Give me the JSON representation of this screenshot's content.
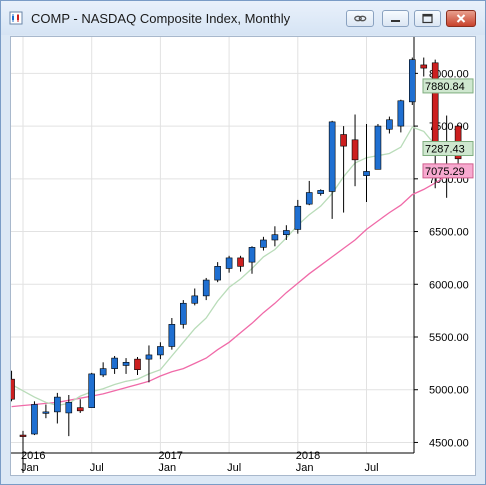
{
  "window": {
    "title": "COMP - NASDAQ Composite Index, Monthly",
    "buttons": [
      "link",
      "minimize",
      "maximize",
      "close"
    ]
  },
  "chart_data": {
    "type": "candlestick",
    "symbol": "COMP",
    "interval": "Monthly",
    "title": "COMP - NASDAQ Composite Index, Monthly",
    "ylim": [
      4400,
      8250
    ],
    "y_ticks": [
      "4500.00",
      "5000.00",
      "5500.00",
      "6000.00",
      "6500.00",
      "7000.00",
      "7500.00",
      "8000.00"
    ],
    "x_labels": [
      {
        "month": "2016-01",
        "label": "2016"
      },
      {
        "month": "2016-01",
        "label": "Jan"
      },
      {
        "month": "2016-07",
        "label": "Jul"
      },
      {
        "month": "2017-01",
        "label": "2017"
      },
      {
        "month": "2017-01",
        "label": "Jan"
      },
      {
        "month": "2017-07",
        "label": "Jul"
      },
      {
        "month": "2018-01",
        "label": "2018"
      },
      {
        "month": "2018-01",
        "label": "Jan"
      },
      {
        "month": "2018-07",
        "label": "Jul"
      }
    ],
    "price_labels": [
      {
        "label": "7880.84",
        "value": 7880.84,
        "color": "#cfe7cf",
        "border": "#7fae7f"
      },
      {
        "label": "7287.43",
        "value": 7287.43,
        "color": "#cfe7cf",
        "border": "#7fae7f"
      },
      {
        "label": "7075.29",
        "value": 7075.29,
        "color": "#f7a9cf",
        "border": "#d0608f"
      }
    ],
    "colors": {
      "up": "#1f6fd1",
      "down": "#cc1f1f",
      "wick": "#000000",
      "ma_fast": "#b9dcb9",
      "ma_slow": "#f06aa8",
      "grid": "#e2e2e2"
    },
    "candles": [
      {
        "date": "2015-12",
        "open": 5100,
        "high": 5180,
        "low": 4890,
        "close": 4910
      },
      {
        "date": "2016-01",
        "open": 4570,
        "high": 4610,
        "low": 4210,
        "close": 4560
      },
      {
        "date": "2016-02",
        "open": 4580,
        "high": 4890,
        "low": 4570,
        "close": 4860
      },
      {
        "date": "2016-03",
        "open": 4780,
        "high": 4860,
        "low": 4730,
        "close": 4790
      },
      {
        "date": "2016-04",
        "open": 4790,
        "high": 4970,
        "low": 4680,
        "close": 4930
      },
      {
        "date": "2016-05",
        "open": 4780,
        "high": 4950,
        "low": 4560,
        "close": 4880
      },
      {
        "date": "2016-06",
        "open": 4830,
        "high": 4910,
        "low": 4780,
        "close": 4800
      },
      {
        "date": "2016-07",
        "open": 4830,
        "high": 5160,
        "low": 4830,
        "close": 5150
      },
      {
        "date": "2016-08",
        "open": 5140,
        "high": 5260,
        "low": 5120,
        "close": 5200
      },
      {
        "date": "2016-09",
        "open": 5200,
        "high": 5320,
        "low": 5150,
        "close": 5300
      },
      {
        "date": "2016-10",
        "open": 5230,
        "high": 5300,
        "low": 5150,
        "close": 5260
      },
      {
        "date": "2016-11",
        "open": 5290,
        "high": 5310,
        "low": 5140,
        "close": 5190
      },
      {
        "date": "2016-12",
        "open": 5290,
        "high": 5420,
        "low": 5070,
        "close": 5330
      },
      {
        "date": "2017-01",
        "open": 5330,
        "high": 5450,
        "low": 5290,
        "close": 5410
      },
      {
        "date": "2017-02",
        "open": 5410,
        "high": 5680,
        "low": 5380,
        "close": 5620
      },
      {
        "date": "2017-03",
        "open": 5620,
        "high": 5850,
        "low": 5580,
        "close": 5820
      },
      {
        "date": "2017-04",
        "open": 5820,
        "high": 5960,
        "low": 5800,
        "close": 5890
      },
      {
        "date": "2017-05",
        "open": 5890,
        "high": 6060,
        "low": 5850,
        "close": 6040
      },
      {
        "date": "2017-06",
        "open": 6040,
        "high": 6210,
        "low": 6020,
        "close": 6170
      },
      {
        "date": "2017-07",
        "open": 6150,
        "high": 6270,
        "low": 6110,
        "close": 6250
      },
      {
        "date": "2017-08",
        "open": 6250,
        "high": 6270,
        "low": 6120,
        "close": 6170
      },
      {
        "date": "2017-09",
        "open": 6210,
        "high": 6360,
        "low": 6100,
        "close": 6350
      },
      {
        "date": "2017-10",
        "open": 6350,
        "high": 6450,
        "low": 6320,
        "close": 6420
      },
      {
        "date": "2017-11",
        "open": 6420,
        "high": 6550,
        "low": 6360,
        "close": 6470
      },
      {
        "date": "2017-12",
        "open": 6470,
        "high": 6560,
        "low": 6420,
        "close": 6510
      },
      {
        "date": "2018-01",
        "open": 6520,
        "high": 6800,
        "low": 6480,
        "close": 6740
      },
      {
        "date": "2018-02",
        "open": 6760,
        "high": 6980,
        "low": 6750,
        "close": 6870
      },
      {
        "date": "2018-03",
        "open": 6860,
        "high": 6900,
        "low": 6840,
        "close": 6890
      },
      {
        "date": "2018-04",
        "open": 6880,
        "high": 7550,
        "low": 6620,
        "close": 7540
      },
      {
        "date": "2018-05",
        "open": 7420,
        "high": 7500,
        "low": 6680,
        "close": 7310
      },
      {
        "date": "2018-06",
        "open": 7370,
        "high": 7610,
        "low": 6930,
        "close": 7180
      },
      {
        "date": "2018-07",
        "open": 7030,
        "high": 7520,
        "low": 6780,
        "close": 7070
      },
      {
        "date": "2018-08",
        "open": 7090,
        "high": 7520,
        "low": 7090,
        "close": 7500
      },
      {
        "date": "2018-09",
        "open": 7470,
        "high": 7590,
        "low": 7430,
        "close": 7560
      },
      {
        "date": "2018-10",
        "open": 7500,
        "high": 7750,
        "low": 7440,
        "close": 7740
      },
      {
        "date": "2018-11",
        "open": 7730,
        "high": 8150,
        "low": 7700,
        "close": 8130
      },
      {
        "date": "2018-12",
        "open": 8080,
        "high": 8150,
        "low": 7970,
        "close": 8050
      },
      {
        "date": "2019-01",
        "open": 8100,
        "high": 8130,
        "low": 6910,
        "close": 7300
      },
      {
        "date": "2019-02",
        "open": 7300,
        "high": 7600,
        "low": 6820,
        "close": 7300
      },
      {
        "date": "2019-03",
        "open": 7500,
        "high": 7510,
        "low": 7110,
        "close": 7190
      }
    ],
    "ma_fast": [
      {
        "date": "2015-12",
        "value": 5050
      },
      {
        "date": "2016-01",
        "value": 4990
      },
      {
        "date": "2016-02",
        "value": 4930
      },
      {
        "date": "2016-03",
        "value": 4880
      },
      {
        "date": "2016-04",
        "value": 4850
      },
      {
        "date": "2016-05",
        "value": 4870
      },
      {
        "date": "2016-06",
        "value": 4940
      },
      {
        "date": "2016-07",
        "value": 4980
      },
      {
        "date": "2016-08",
        "value": 5010
      },
      {
        "date": "2016-09",
        "value": 5050
      },
      {
        "date": "2016-10",
        "value": 5080
      },
      {
        "date": "2016-11",
        "value": 5100
      },
      {
        "date": "2016-12",
        "value": 5150
      },
      {
        "date": "2017-01",
        "value": 5190
      },
      {
        "date": "2017-02",
        "value": 5320
      },
      {
        "date": "2017-03",
        "value": 5450
      },
      {
        "date": "2017-04",
        "value": 5580
      },
      {
        "date": "2017-05",
        "value": 5680
      },
      {
        "date": "2017-06",
        "value": 5840
      },
      {
        "date": "2017-07",
        "value": 5970
      },
      {
        "date": "2017-08",
        "value": 6050
      },
      {
        "date": "2017-09",
        "value": 6150
      },
      {
        "date": "2017-10",
        "value": 6260
      },
      {
        "date": "2017-11",
        "value": 6330
      },
      {
        "date": "2017-12",
        "value": 6440
      },
      {
        "date": "2018-01",
        "value": 6560
      },
      {
        "date": "2018-02",
        "value": 6660
      },
      {
        "date": "2018-03",
        "value": 6740
      },
      {
        "date": "2018-04",
        "value": 6860
      },
      {
        "date": "2018-05",
        "value": 7020
      },
      {
        "date": "2018-06",
        "value": 7150
      },
      {
        "date": "2018-07",
        "value": 7200
      },
      {
        "date": "2018-08",
        "value": 7220
      },
      {
        "date": "2018-09",
        "value": 7240
      },
      {
        "date": "2018-10",
        "value": 7300
      },
      {
        "date": "2018-11",
        "value": 7490
      },
      {
        "date": "2018-12",
        "value": 7450
      },
      {
        "date": "2019-01",
        "value": 7320
      },
      {
        "date": "2019-02",
        "value": 7280
      },
      {
        "date": "2019-03",
        "value": 7290
      }
    ],
    "ma_slow": [
      {
        "date": "2015-12",
        "value": 4840
      },
      {
        "date": "2016-01",
        "value": 4850
      },
      {
        "date": "2016-02",
        "value": 4860
      },
      {
        "date": "2016-03",
        "value": 4870
      },
      {
        "date": "2016-04",
        "value": 4880
      },
      {
        "date": "2016-05",
        "value": 4900
      },
      {
        "date": "2016-06",
        "value": 4920
      },
      {
        "date": "2016-07",
        "value": 4940
      },
      {
        "date": "2016-08",
        "value": 4960
      },
      {
        "date": "2016-09",
        "value": 4990
      },
      {
        "date": "2016-10",
        "value": 5020
      },
      {
        "date": "2016-11",
        "value": 5050
      },
      {
        "date": "2016-12",
        "value": 5080
      },
      {
        "date": "2017-01",
        "value": 5130
      },
      {
        "date": "2017-02",
        "value": 5170
      },
      {
        "date": "2017-03",
        "value": 5200
      },
      {
        "date": "2017-04",
        "value": 5250
      },
      {
        "date": "2017-05",
        "value": 5300
      },
      {
        "date": "2017-06",
        "value": 5380
      },
      {
        "date": "2017-07",
        "value": 5450
      },
      {
        "date": "2017-08",
        "value": 5540
      },
      {
        "date": "2017-09",
        "value": 5630
      },
      {
        "date": "2017-10",
        "value": 5730
      },
      {
        "date": "2017-11",
        "value": 5820
      },
      {
        "date": "2017-12",
        "value": 5920
      },
      {
        "date": "2018-01",
        "value": 6010
      },
      {
        "date": "2018-02",
        "value": 6100
      },
      {
        "date": "2018-03",
        "value": 6180
      },
      {
        "date": "2018-04",
        "value": 6260
      },
      {
        "date": "2018-05",
        "value": 6340
      },
      {
        "date": "2018-06",
        "value": 6420
      },
      {
        "date": "2018-07",
        "value": 6520
      },
      {
        "date": "2018-08",
        "value": 6600
      },
      {
        "date": "2018-09",
        "value": 6680
      },
      {
        "date": "2018-10",
        "value": 6750
      },
      {
        "date": "2018-11",
        "value": 6850
      },
      {
        "date": "2018-12",
        "value": 6900
      },
      {
        "date": "2019-01",
        "value": 6960
      },
      {
        "date": "2019-02",
        "value": 7030
      },
      {
        "date": "2019-03",
        "value": 7075
      }
    ]
  }
}
